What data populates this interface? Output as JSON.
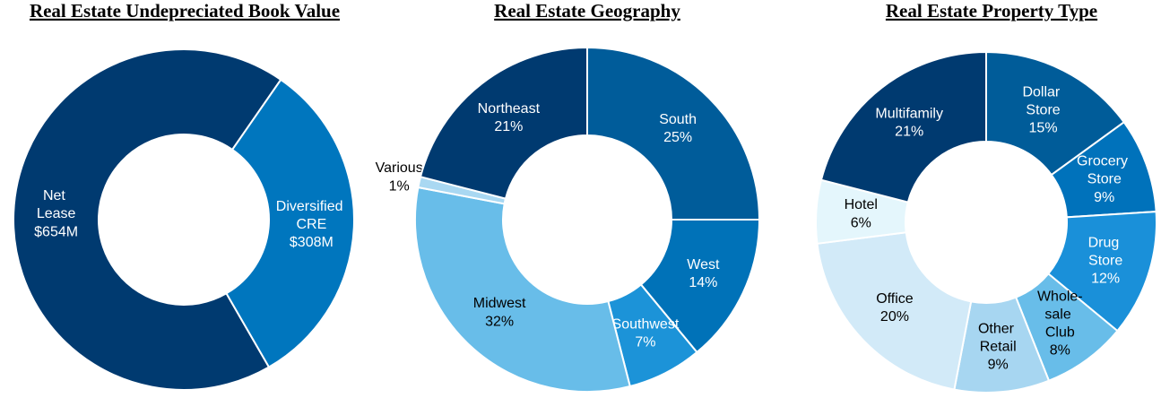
{
  "chart_data": [
    {
      "type": "pie",
      "title": "Real Estate Undepreciated Book Value",
      "categories": [
        "Net Lease",
        "Diversified CRE"
      ],
      "values": [
        654,
        308
      ],
      "value_labels": [
        "$654M",
        "$308M"
      ],
      "colors": [
        "#003a70",
        "#0076be"
      ]
    },
    {
      "type": "pie",
      "title": "Real Estate Geography",
      "categories": [
        "South",
        "West",
        "Southwest",
        "Midwest",
        "Various",
        "Northeast"
      ],
      "values": [
        25,
        14,
        7,
        32,
        1,
        21
      ],
      "value_labels": [
        "25%",
        "14%",
        "7%",
        "32%",
        "1%",
        "21%"
      ],
      "colors": [
        "#005c9a",
        "#0072b8",
        "#1c93d8",
        "#68bde9",
        "#a9d8f2",
        "#003a70"
      ]
    },
    {
      "type": "pie",
      "title": "Real Estate Property Type",
      "categories": [
        "Dollar Store",
        "Grocery Store",
        "Drug Store",
        "Whole-sale Club",
        "Other Retail",
        "Office",
        "Hotel",
        "Multifamily"
      ],
      "values": [
        15,
        9,
        12,
        8,
        9,
        20,
        6,
        21
      ],
      "value_labels": [
        "15%",
        "9%",
        "12%",
        "8%",
        "9%",
        "20%",
        "6%",
        "21%"
      ],
      "colors": [
        "#005c99",
        "#0072bb",
        "#1a90d9",
        "#68bde9",
        "#a7d6f1",
        "#d2eaf8",
        "#e4f6fc",
        "#003a70"
      ]
    }
  ]
}
